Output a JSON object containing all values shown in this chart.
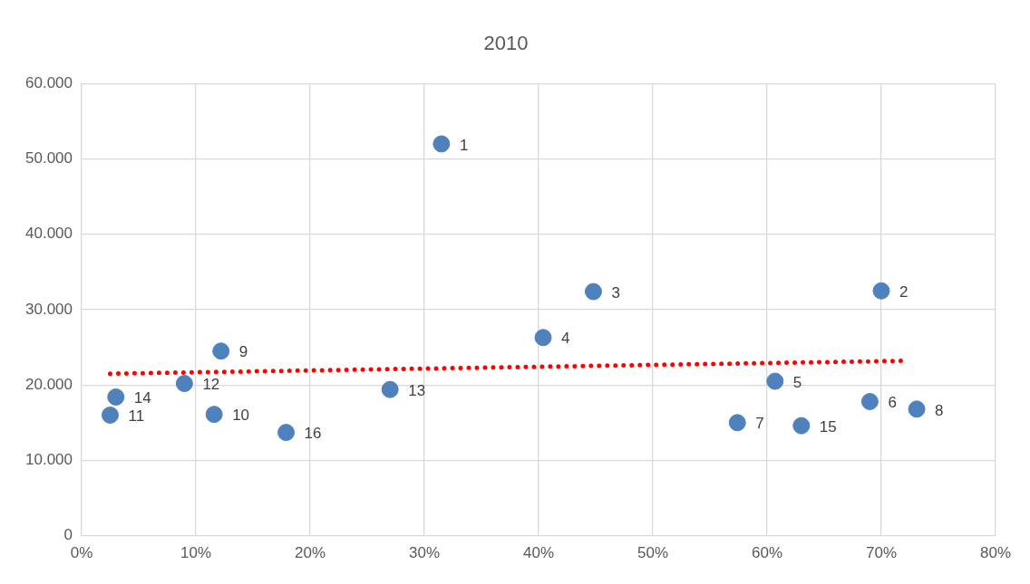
{
  "chart_data": {
    "type": "scatter",
    "title": "2010",
    "xlim": [
      0,
      80
    ],
    "xticks": [
      {
        "value": 0,
        "label": "0%"
      },
      {
        "value": 10,
        "label": "10%"
      },
      {
        "value": 20,
        "label": "20%"
      },
      {
        "value": 30,
        "label": "30%"
      },
      {
        "value": 40,
        "label": "40%"
      },
      {
        "value": 50,
        "label": "50%"
      },
      {
        "value": 60,
        "label": "60%"
      },
      {
        "value": 70,
        "label": "70%"
      },
      {
        "value": 80,
        "label": "80%"
      }
    ],
    "ylim": [
      0,
      60000
    ],
    "yticks": [
      0,
      {
        "value": 10000,
        "label": "10.000"
      },
      {
        "value": 20000,
        "label": "20.000"
      },
      {
        "value": 30000,
        "label": "30.000"
      },
      {
        "value": 40000,
        "label": "40.000"
      },
      {
        "value": 50000,
        "label": "50.000"
      },
      {
        "value": 60000,
        "label": "60.000"
      }
    ],
    "grid": true,
    "legend": false,
    "series": [
      {
        "color": "#4f81bd",
        "marker": "circle",
        "x": [
          31.5,
          70,
          44.8,
          40.4,
          60.7,
          69,
          57.4,
          73.1,
          12.2,
          11.6,
          2.5,
          9,
          27,
          3,
          63,
          17.9
        ],
        "values": [
          52000,
          32500,
          32400,
          26300,
          20500,
          17800,
          15000,
          16800,
          24500,
          16100,
          16000,
          20200,
          19400,
          18400,
          14600,
          13700
        ]
      },
      {
        "type": "line",
        "color": "#ff0000",
        "marker": "none",
        "line_style": "dotted",
        "x": [
          2.5,
          71.7
        ],
        "values": [
          21500,
          23200
        ]
      }
    ],
    "annotations": [
      {
        "text": "1",
        "x": 31.5,
        "y": 52000
      },
      {
        "text": "2",
        "x": 70,
        "y": 32500
      },
      {
        "text": "3",
        "x": 44.8,
        "y": 32400
      },
      {
        "text": "4",
        "x": 40.4,
        "y": 26300
      },
      {
        "text": "5",
        "x": 60.7,
        "y": 20500
      },
      {
        "text": "6",
        "x": 69,
        "y": 17800
      },
      {
        "text": "7",
        "x": 57.4,
        "y": 15000
      },
      {
        "text": "8",
        "x": 73.1,
        "y": 16800
      },
      {
        "text": "9",
        "x": 12.2,
        "y": 24500
      },
      {
        "text": "10",
        "x": 11.6,
        "y": 16100
      },
      {
        "text": "11",
        "x": 2.5,
        "y": 16000
      },
      {
        "text": "12",
        "x": 9,
        "y": 20200
      },
      {
        "text": "13",
        "x": 27,
        "y": 19400
      },
      {
        "text": "14",
        "x": 3,
        "y": 18400
      },
      {
        "text": "15",
        "x": 63,
        "y": 14600
      },
      {
        "text": "16",
        "x": 17.9,
        "y": 13700
      }
    ]
  }
}
